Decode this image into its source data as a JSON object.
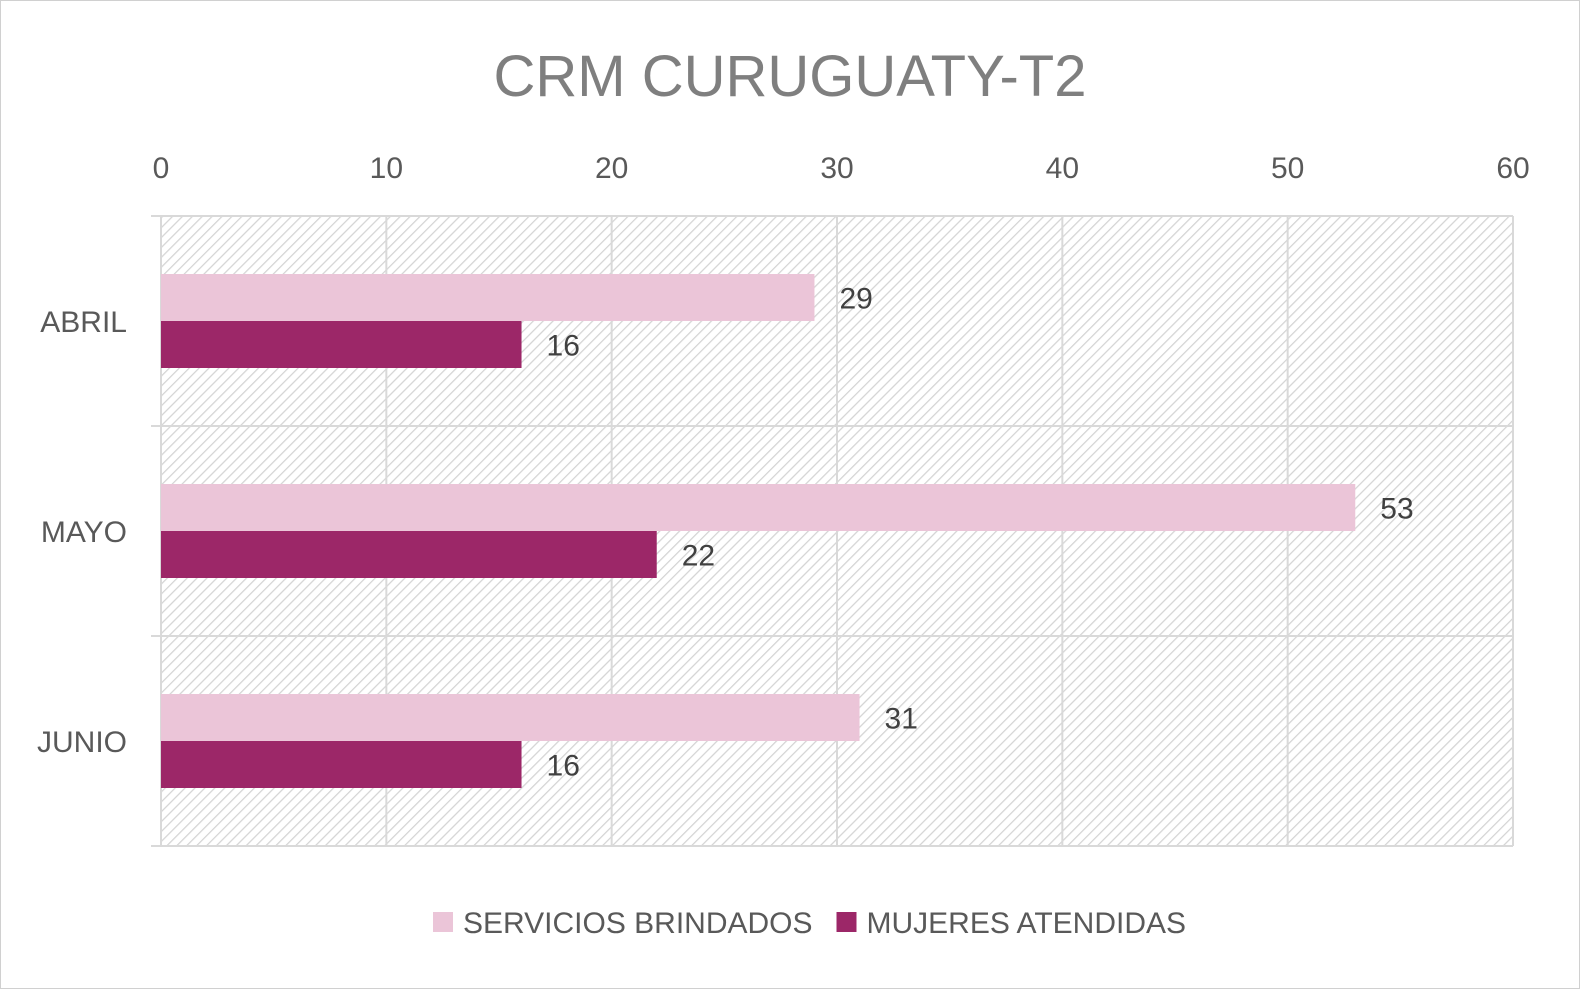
{
  "chart_data": {
    "type": "bar",
    "orientation": "horizontal",
    "title": "CRM CURUGUATY-T2",
    "categories": [
      "ABRIL",
      "MAYO",
      "JUNIO"
    ],
    "series": [
      {
        "name": "SERVICIOS BRINDADOS",
        "values": [
          29,
          53,
          31
        ],
        "color": "#ebc5d8"
      },
      {
        "name": "MUJERES ATENDIDAS",
        "values": [
          16,
          22,
          16
        ],
        "color": "#9c2768"
      }
    ],
    "xlim": [
      0,
      60
    ],
    "x_ticks": [
      0,
      10,
      20,
      30,
      40,
      50,
      60
    ],
    "x_axis_position": "top",
    "grid": true,
    "legend_position": "bottom",
    "data_labels": true
  }
}
